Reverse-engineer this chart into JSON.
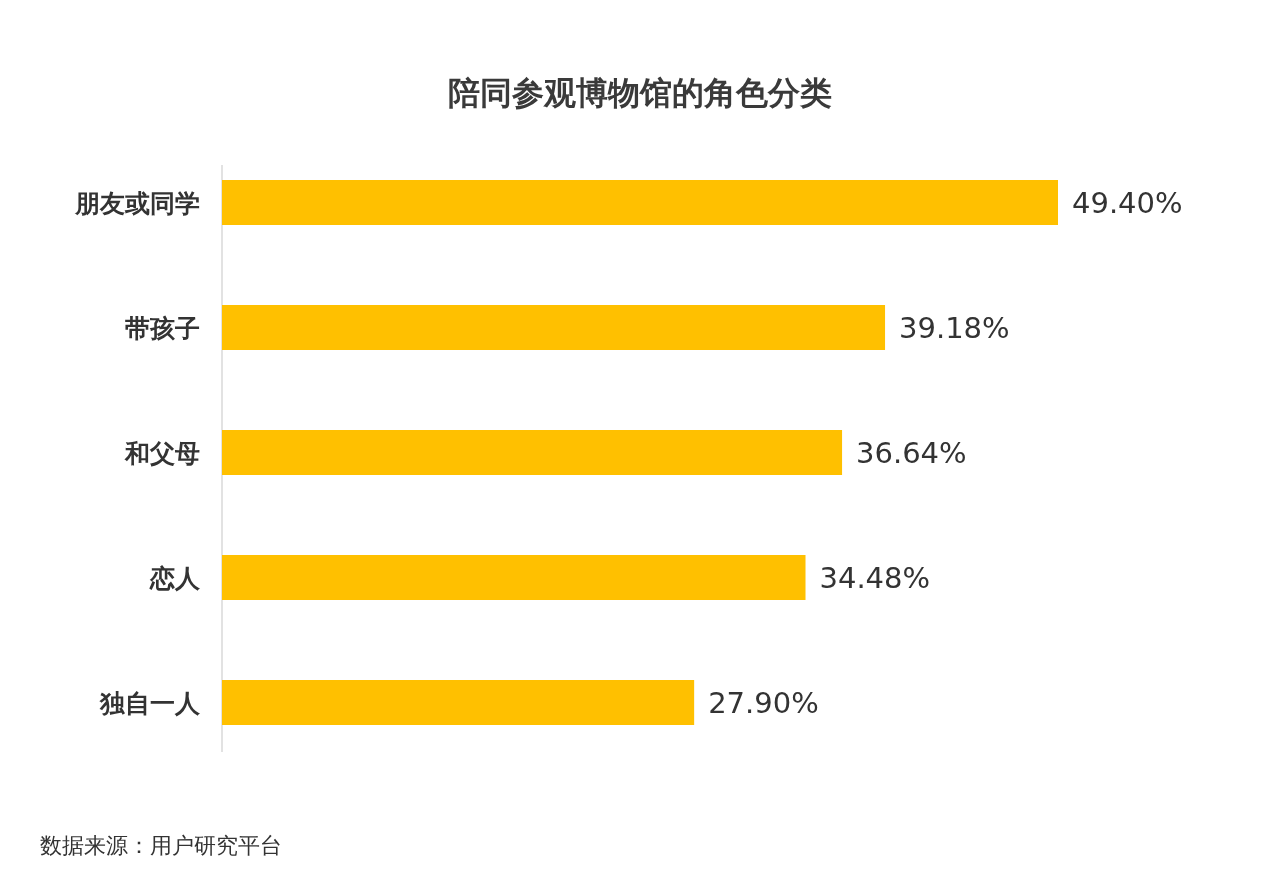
{
  "chart_data": {
    "type": "bar",
    "orientation": "horizontal",
    "title": "陪同参观博物馆的角色分类",
    "categories": [
      "朋友或同学",
      "带孩子",
      "和父母",
      "恋人",
      "独自一人"
    ],
    "values": [
      49.4,
      39.18,
      36.64,
      34.48,
      27.9
    ],
    "value_labels": [
      "49.40%",
      "39.18%",
      "36.64%",
      "34.48%",
      "27.90%"
    ],
    "color": "#ffc000",
    "annotations": [
      "数据来源：用户研究平台"
    ]
  }
}
